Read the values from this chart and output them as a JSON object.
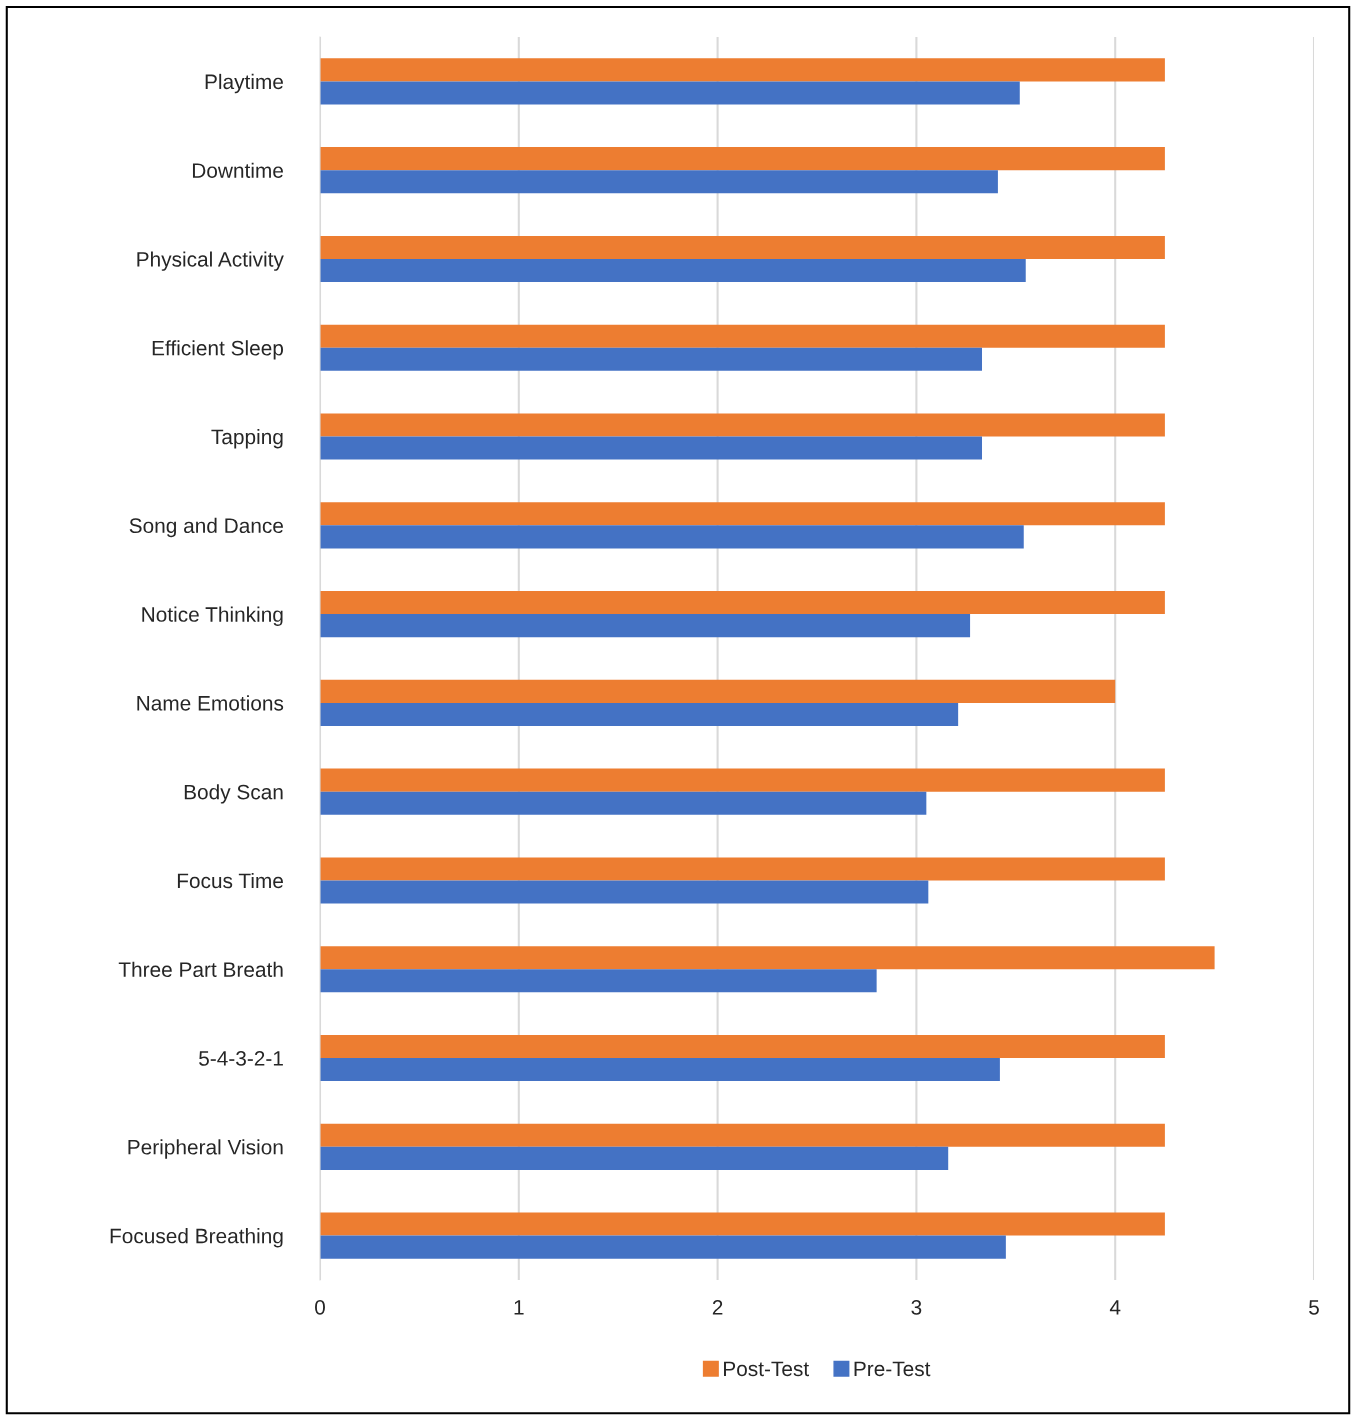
{
  "chart_data": {
    "type": "bar",
    "orientation": "horizontal",
    "categories": [
      "Playtime",
      "Downtime",
      "Physical Activity",
      "Efficient Sleep",
      "Tapping",
      "Song and Dance",
      "Notice Thinking",
      "Name Emotions",
      "Body Scan",
      "Focus Time",
      "Three Part Breath",
      "5-4-3-2-1",
      "Peripheral Vision",
      "Focused Breathing"
    ],
    "series": [
      {
        "name": "Post-Test",
        "color": "#ed7d31",
        "values": [
          4.25,
          4.25,
          4.25,
          4.25,
          4.25,
          4.25,
          4.25,
          4.0,
          4.25,
          4.25,
          4.5,
          4.25,
          4.25,
          4.25
        ]
      },
      {
        "name": "Pre-Test",
        "color": "#4472c4",
        "values": [
          3.52,
          3.41,
          3.55,
          3.33,
          3.33,
          3.54,
          3.27,
          3.21,
          3.05,
          3.06,
          2.8,
          3.42,
          3.16,
          3.45
        ]
      }
    ],
    "xlim": [
      0,
      5
    ],
    "xticks": [
      0,
      1,
      2,
      3,
      4,
      5
    ],
    "grid": "x",
    "legend": "bottom"
  }
}
